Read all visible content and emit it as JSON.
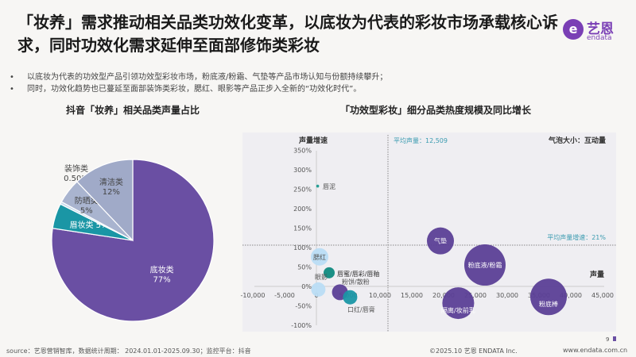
{
  "header": {
    "title": "「妆养」需求推动相关品类功效化变革，以底妆为代表的彩妆市场承载核心诉求，同时功效化需求延伸至面部修饰类彩妆",
    "logo": {
      "cn": "艺恩",
      "en": "endata",
      "mark": "e"
    }
  },
  "bullets": [
    "以底妆为代表的功效型产品引领功效型彩妆市场，粉底液/粉霜、气垫等产品市场认知与份额持续攀升；",
    "同时，功效化趋势也已蔓延至面部装饰类彩妆，腮红、眼影等产品正步入全新的“功效化时代”。"
  ],
  "chart_data": [
    {
      "type": "pie",
      "title": "抖音「妆养」相关品类声量占比",
      "slices": [
        {
          "label": "底妆类",
          "value": 77,
          "display": "77%",
          "color": "#6a4fa3"
        },
        {
          "label": "眉妆类",
          "value": 5,
          "display": "5%",
          "color": "#1a96a5"
        },
        {
          "label": "装饰类",
          "value": 0.5,
          "display": "0.50%",
          "color": "#c8dbee"
        },
        {
          "label": "防晒类",
          "value": 5,
          "display": "5%",
          "color": "#a9b4cf"
        },
        {
          "label": "清洁类",
          "value": 12,
          "display": "12%",
          "color": "#a0aac8"
        }
      ]
    },
    {
      "type": "scatter",
      "title": "「功效型彩妆」细分品类热度规模及同比增长",
      "xlabel": "声量",
      "ylabel": "声量增速",
      "size_label": "气泡大小：互动量",
      "xlim": [
        -10000,
        45000
      ],
      "ylim": [
        -100,
        350
      ],
      "xticks": [
        "-10,000",
        "-5,000",
        "0",
        "5,000",
        "10,000",
        "15,000",
        "20,000",
        "25,000",
        "30,000",
        "35,000",
        "40,000",
        "45,000"
      ],
      "yticks": [
        "350%",
        "300%",
        "250%",
        "200%",
        "150%",
        "100%",
        "50%",
        "0%",
        "-50%",
        "-100%"
      ],
      "avg_x_label": "平均声量：12,509",
      "avg_y_label": "平均声量增速：21%",
      "points": [
        {
          "label": "唇泥",
          "x": 200,
          "y": 258,
          "size": 1,
          "color": "#1a9a8f"
        },
        {
          "label": "腮红",
          "x": 500,
          "y": 76,
          "size": 11,
          "color": "#b9dcf4"
        },
        {
          "label": "唇蜜/唇彩/唇釉",
          "x": 2000,
          "y": 35,
          "size": 7,
          "color": "#0f8a80"
        },
        {
          "label": "眼影",
          "x": 300,
          "y": -8,
          "size": 9,
          "color": "#b9dcf4"
        },
        {
          "label": "粉饼/散粉",
          "x": 3700,
          "y": -15,
          "size": 10,
          "color": "#5b3f96"
        },
        {
          "label": "口红/唇膏",
          "x": 5300,
          "y": -28,
          "size": 9,
          "color": "#1a96a5"
        },
        {
          "label": "气垫",
          "x": 19500,
          "y": 117,
          "size": 17,
          "color": "#5b3f96"
        },
        {
          "label": "粉底液/粉霜",
          "x": 26500,
          "y": 55,
          "size": 26,
          "color": "#5b3f96"
        },
        {
          "label": "隔离/妆前乳",
          "x": 22300,
          "y": -43,
          "size": 20,
          "color": "#5b3f96"
        },
        {
          "label": "粉底棒",
          "x": 36500,
          "y": -27,
          "size": 23,
          "color": "#5b3f96"
        }
      ]
    }
  ],
  "footer": {
    "source": "source：艺恩营销智库，数据统计周期： 2024.01.01-2025.09.30；监控平台：抖音",
    "copyright": "©2025.10 艺恩 ENDATA Inc.",
    "url": "www.endata.com.cn",
    "page": "9"
  }
}
